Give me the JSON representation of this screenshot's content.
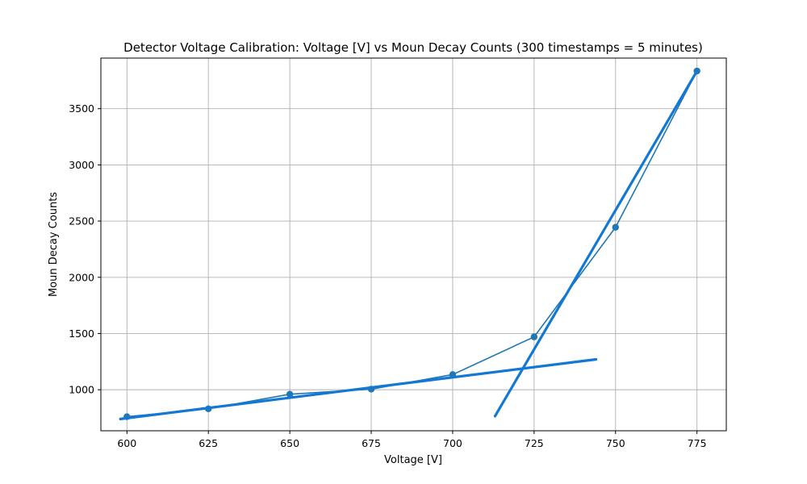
{
  "chart_data": {
    "type": "line",
    "title": "Detector Voltage Calibration: Voltage [V] vs Moun Decay Counts (300 timestamps = 5 minutes)",
    "xlabel": "Voltage [V]",
    "ylabel": "Moun Decay Counts",
    "xlim": [
      592,
      784
    ],
    "ylim": [
      635,
      3950
    ],
    "xticks": [
      600,
      625,
      650,
      675,
      700,
      725,
      750,
      775
    ],
    "yticks": [
      1000,
      1500,
      2000,
      2500,
      3000,
      3500
    ],
    "grid": true,
    "series": [
      {
        "kind": "line-with-markers",
        "color": "#1f77b4",
        "x": [
          600,
          625,
          650,
          675,
          700,
          725,
          750,
          775
        ],
        "y": [
          760,
          830,
          960,
          1005,
          1135,
          1470,
          2445,
          3835
        ]
      },
      {
        "kind": "fit-line",
        "color": "#1378d4",
        "x": [
          598,
          744
        ],
        "y": [
          740,
          1270
        ]
      },
      {
        "kind": "fit-line",
        "color": "#1378d4",
        "x": [
          713,
          775
        ],
        "y": [
          765,
          3835
        ]
      }
    ]
  }
}
